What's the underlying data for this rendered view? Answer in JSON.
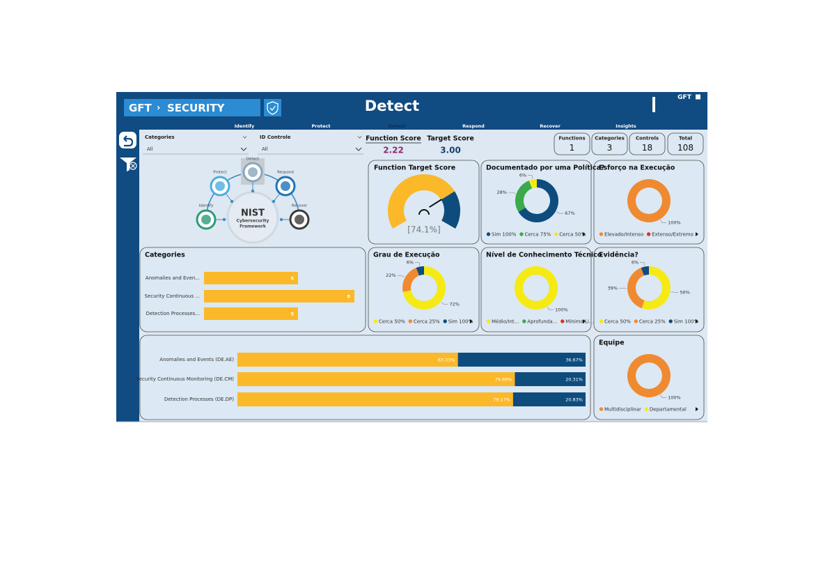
{
  "header": {
    "brand": "GFT",
    "section": "SECURITY",
    "title": "Detect",
    "logo": "GFT"
  },
  "nav": [
    "Identify",
    "Protect",
    "Detect",
    "Respond",
    "Recover",
    "Insights"
  ],
  "filters": [
    {
      "label": "Categories",
      "value": "All"
    },
    {
      "label": "ID Controle",
      "value": "All"
    }
  ],
  "scores": [
    {
      "label": "Function Score",
      "value": "2.22",
      "color": "#8e2b6e"
    },
    {
      "label": "Target Score",
      "value": "3.00",
      "color": "#1c3f6e"
    }
  ],
  "counts": [
    {
      "label": "Functions",
      "value": 1
    },
    {
      "label": "Categories",
      "value": 3
    },
    {
      "label": "Controls",
      "value": 18
    },
    {
      "label": "Total",
      "value": 108
    }
  ],
  "nist": {
    "title": "NIST",
    "subtitle": [
      "Cybersecurity",
      "Framework"
    ],
    "functions": [
      "Identify",
      "Protect",
      "Detect",
      "Respond",
      "Recover"
    ]
  },
  "gauge": {
    "title": "Function Target Score",
    "value": 74.1,
    "value_label": "[74.1%]",
    "colors": [
      "#fbb829",
      "#0e4c7d"
    ]
  },
  "category_bars": {
    "title": "Categories",
    "categories": [
      "Anomalies and Even...",
      "Security Continuous ...",
      "Detection Processes..."
    ],
    "values": [
      5,
      8,
      5
    ],
    "color": "#fbb829"
  },
  "stacked_bars": {
    "categories": [
      "Anomalies and Events (DE.AE)",
      "Security Continuous Monitoring (DE.CM)",
      "Detection Processes (DE.DP)"
    ],
    "series": [
      {
        "color": "#fbb829",
        "values": [
          63.33,
          79.69,
          79.17
        ],
        "value_labels": [
          "63.33%",
          "79.69%",
          "79.17%"
        ]
      },
      {
        "color": "#0e4c7d",
        "values": [
          36.67,
          20.31,
          20.83
        ],
        "value_labels": [
          "36.67%",
          "20.31%",
          "20.83%"
        ]
      }
    ]
  },
  "donuts": [
    {
      "title": "Documentado por uma Política?",
      "values": [
        67,
        28,
        6
      ],
      "value_labels": [
        "67%",
        "28%",
        "6%"
      ],
      "colors": [
        "#0e4c7d",
        "#3aaa4a",
        "#f5ea14"
      ],
      "legend": [
        {
          "name": "Sim 100%",
          "color": "#0e4c7d"
        },
        {
          "name": "Cerca 75%",
          "color": "#3aaa4a"
        },
        {
          "name": "Cerca 50%",
          "color": "#f5ea14"
        }
      ]
    },
    {
      "title": "Esforço na Execução",
      "values": [
        100
      ],
      "value_labels": [
        "100%"
      ],
      "colors": [
        "#f08a30"
      ],
      "legend": [
        {
          "name": "Elevado/Intenso",
          "color": "#f08a30"
        },
        {
          "name": "Extenso/Extremo",
          "color": "#d9342b"
        }
      ]
    },
    {
      "title": "Grau de Execução",
      "values": [
        72,
        22,
        6
      ],
      "value_labels": [
        "72%",
        "22%",
        "6%"
      ],
      "colors": [
        "#f5ea14",
        "#f08a30",
        "#0e4c7d"
      ],
      "legend": [
        {
          "name": "Cerca 50%",
          "color": "#f5ea14"
        },
        {
          "name": "Cerca 25%",
          "color": "#f08a30"
        },
        {
          "name": "Sim 100%",
          "color": "#0e4c7d"
        }
      ]
    },
    {
      "title": "Nível de Conhecimento Técnico",
      "values": [
        100
      ],
      "value_labels": [
        "100%"
      ],
      "colors": [
        "#f5ea14"
      ],
      "legend": [
        {
          "name": "Médio/Int...",
          "color": "#f5ea14"
        },
        {
          "name": "Aprofunda...",
          "color": "#3aaa4a"
        },
        {
          "name": "Mínimo/Li...",
          "color": "#d9342b"
        }
      ]
    },
    {
      "title": "Evidência?",
      "values": [
        56,
        39,
        6
      ],
      "value_labels": [
        "56%",
        "39%",
        "6%"
      ],
      "colors": [
        "#f5ea14",
        "#f08a30",
        "#0e4c7d"
      ],
      "legend": [
        {
          "name": "Cerca 50%",
          "color": "#f5ea14"
        },
        {
          "name": "Cerca 25%",
          "color": "#f08a30"
        },
        {
          "name": "Sim 100%",
          "color": "#0e4c7d"
        }
      ]
    },
    {
      "title": "Equipe",
      "values": [
        100
      ],
      "value_labels": [
        "100%"
      ],
      "colors": [
        "#f08a30"
      ],
      "legend": [
        {
          "name": "Multidisciplinar",
          "color": "#f08a30"
        },
        {
          "name": "Departamental",
          "color": "#f5ea14"
        }
      ]
    }
  ]
}
